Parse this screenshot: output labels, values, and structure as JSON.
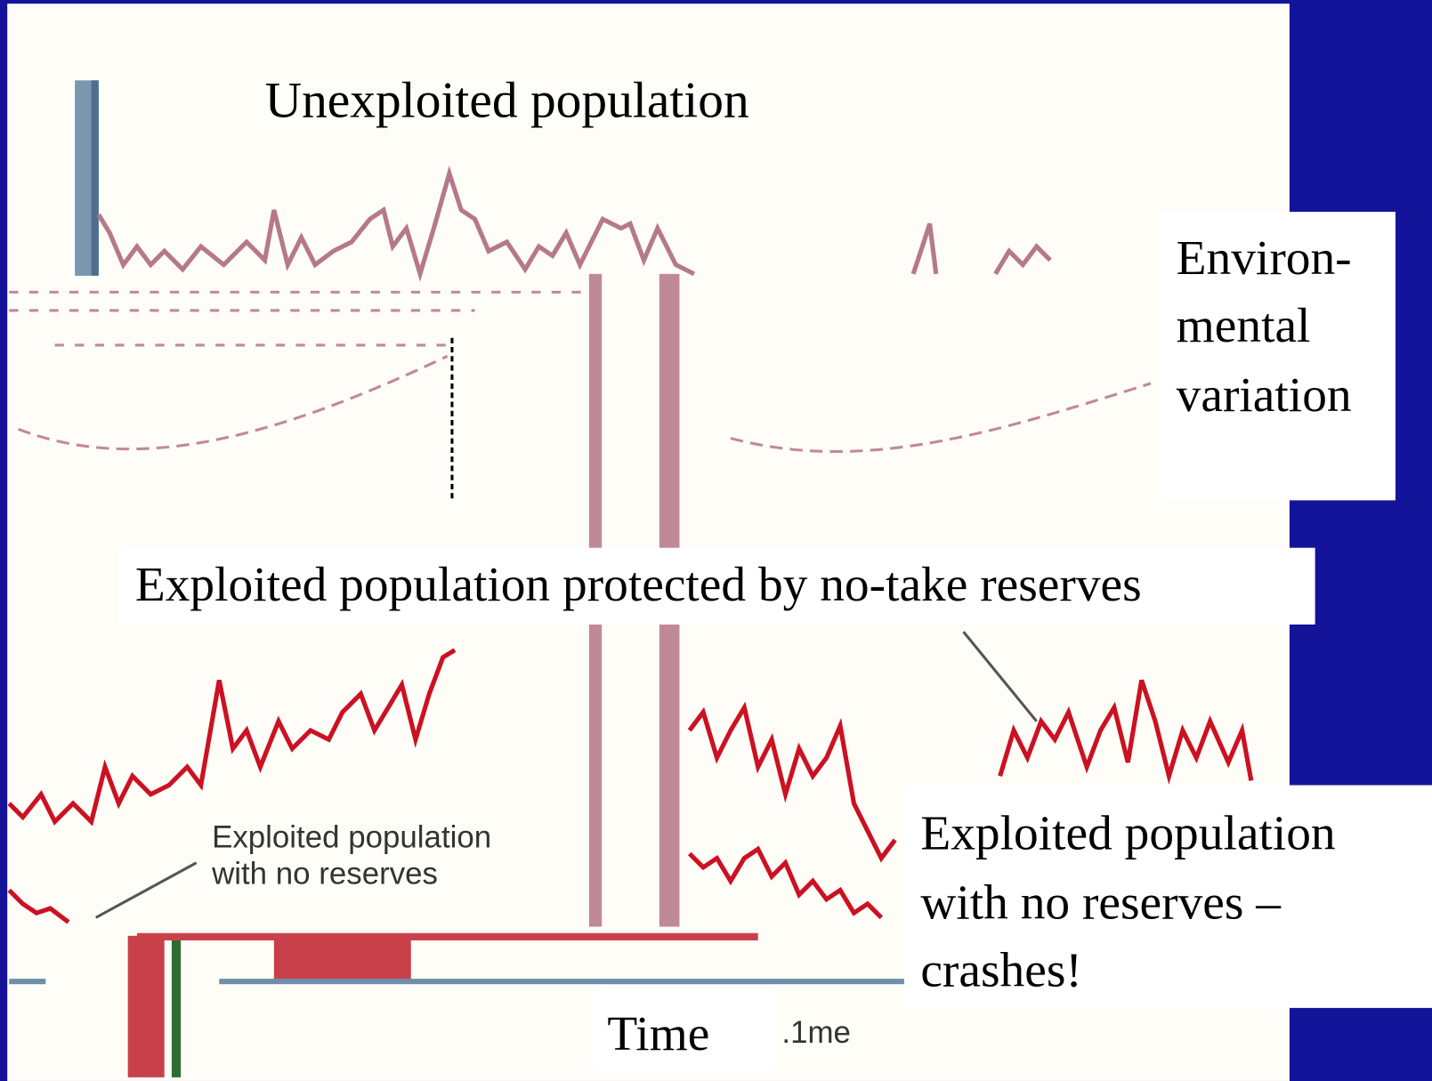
{
  "title": "Unexploited population",
  "environmental_label": [
    "Environ-",
    "mental",
    "variation"
  ],
  "protected_label": "Exploited population protected by no-take reserves",
  "crash_label": [
    "Exploited population",
    "with no reserves –",
    "crashes!"
  ],
  "inset_label": [
    "Exploited population",
    "with no reserves"
  ],
  "x_axis_label": "Time",
  "inset_axis_label": ".1me"
}
